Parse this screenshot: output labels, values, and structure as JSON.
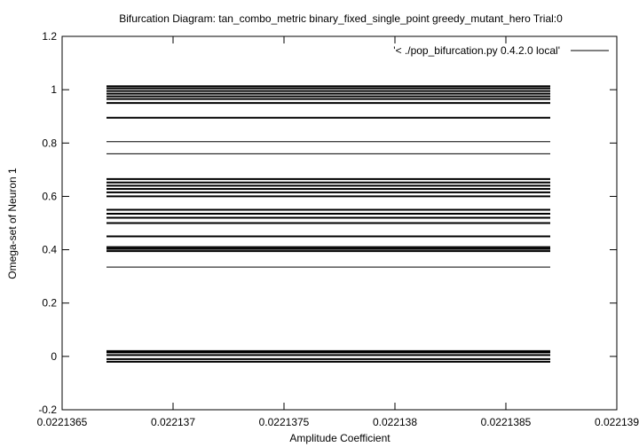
{
  "chart_data": {
    "type": "line",
    "title": "Bifurcation Diagram: tan_combo_metric binary_fixed_single_point greedy_mutant_hero Trial:0",
    "xlabel": "Amplitude Coefficient",
    "ylabel": "Omega-set of Neuron 1",
    "xlim": [
      0.0221365,
      0.022139
    ],
    "ylim": [
      -0.2,
      1.2
    ],
    "x_ticks": [
      0.0221365,
      0.022137,
      0.0221375,
      0.022138,
      0.0221385,
      0.022139
    ],
    "x_tick_labels": [
      "0.0221365",
      "0.022137",
      "0.0221375",
      "0.022138",
      "0.0221385",
      "0.022139"
    ],
    "y_ticks": [
      -0.2,
      0,
      0.2,
      0.4,
      0.6,
      0.8,
      1,
      1.2
    ],
    "y_tick_labels": [
      "-0.2",
      "0",
      "0.2",
      "0.4",
      "0.6",
      "0.8",
      "1",
      "1.2"
    ],
    "grid": false,
    "legend_position": "top-right",
    "series": [
      {
        "name": "'< ./pop_bifurcation.py 0.4.2.0 local'",
        "color": "#000000",
        "x_range": [
          0.0221367,
          0.0221387
        ],
        "y_values": [
          1.013,
          1.005,
          0.995,
          0.985,
          0.975,
          0.965,
          0.95,
          0.895,
          0.805,
          0.76,
          0.665,
          0.652,
          0.64,
          0.628,
          0.615,
          0.6,
          0.55,
          0.535,
          0.52,
          0.5,
          0.45,
          0.41,
          0.403,
          0.395,
          0.335,
          0.02,
          0.015,
          0.005,
          -0.01,
          -0.02
        ]
      }
    ]
  }
}
